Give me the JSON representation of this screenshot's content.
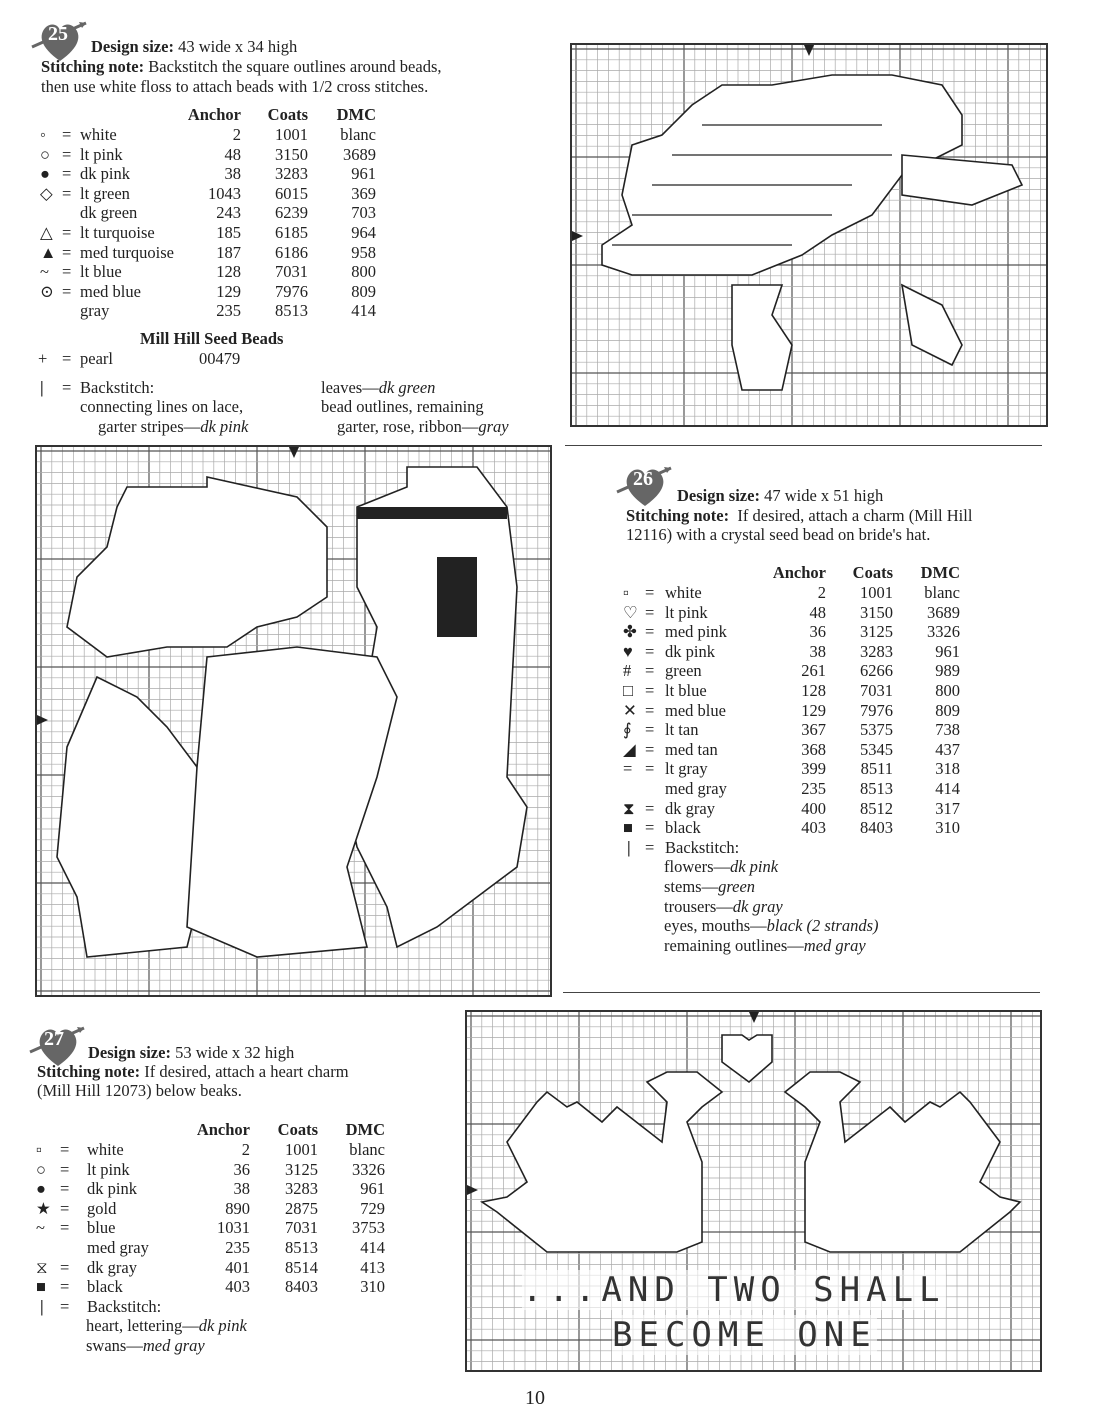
{
  "page_number": "10",
  "patterns": [
    {
      "number": "25",
      "design_size_label": "Design size:",
      "design_size": "43 wide x 34 high",
      "note_label": "Stitching note:",
      "note_line1": "Backstitch the square outlines around beads,",
      "note_line2": "then use white floss to attach beads with 1/2 cross stitches.",
      "columns": [
        "Anchor",
        "Coats",
        "DMC"
      ],
      "rows": [
        {
          "symbol": "◦",
          "icon": "small-square-icon",
          "eq": "=",
          "name": "white",
          "anchor": "2",
          "coats": "1001",
          "dmc": "blanc"
        },
        {
          "symbol": "○",
          "icon": "open-circle-icon",
          "eq": "=",
          "name": "lt pink",
          "anchor": "48",
          "coats": "3150",
          "dmc": "3689"
        },
        {
          "symbol": "●",
          "icon": "filled-circle-icon",
          "eq": "=",
          "name": "dk pink",
          "anchor": "38",
          "coats": "3283",
          "dmc": "961"
        },
        {
          "symbol": "◇",
          "icon": "open-diamond-icon",
          "eq": "=",
          "name": "lt green",
          "anchor": "1043",
          "coats": "6015",
          "dmc": "369"
        },
        {
          "symbol": "",
          "icon": "",
          "eq": "",
          "name": "dk green",
          "anchor": "243",
          "coats": "6239",
          "dmc": "703"
        },
        {
          "symbol": "△",
          "icon": "open-triangle-icon",
          "eq": "=",
          "name": "lt turquoise",
          "anchor": "185",
          "coats": "6185",
          "dmc": "964"
        },
        {
          "symbol": "▲",
          "icon": "filled-triangle-icon",
          "eq": "=",
          "name": "med turquoise",
          "anchor": "187",
          "coats": "6186",
          "dmc": "958"
        },
        {
          "symbol": "~",
          "icon": "tilde-icon",
          "eq": "=",
          "name": "lt blue",
          "anchor": "128",
          "coats": "7031",
          "dmc": "800"
        },
        {
          "symbol": "⊙",
          "icon": "dotted-circle-icon",
          "eq": "=",
          "name": "med blue",
          "anchor": "129",
          "coats": "7976",
          "dmc": "809"
        },
        {
          "symbol": "",
          "icon": "",
          "eq": "",
          "name": "gray",
          "anchor": "235",
          "coats": "8513",
          "dmc": "414"
        }
      ],
      "beads_heading": "Mill Hill Seed Beads",
      "bead": {
        "symbol": "+",
        "eq": "=",
        "name": "pearl",
        "code": "00479"
      },
      "backstitch": {
        "symbol": "|",
        "eq": "=",
        "label": "Backstitch:",
        "left_line1": "connecting lines on lace,",
        "left_line2": "garter stripes—",
        "left_color": "dk pink",
        "right_line1": "leaves—",
        "right_color1": "dk green",
        "right_line2": "bead outlines, remaining",
        "right_line3": "garter, rose, ribbon—",
        "right_color3": "gray"
      }
    },
    {
      "number": "26",
      "design_size_label": "Design size:",
      "design_size": "47 wide x 51 high",
      "note_label": "Stitching note:",
      "note_line1": "If desired, attach a charm (Mill Hill",
      "note_line2": "12116) with a crystal seed bead on bride's hat.",
      "columns": [
        "Anchor",
        "Coats",
        "DMC"
      ],
      "rows": [
        {
          "symbol": "▫",
          "icon": "small-square-icon",
          "eq": "=",
          "name": "white",
          "anchor": "2",
          "coats": "1001",
          "dmc": "blanc"
        },
        {
          "symbol": "♡",
          "icon": "open-heart-icon",
          "eq": "=",
          "name": "lt pink",
          "anchor": "48",
          "coats": "3150",
          "dmc": "3689"
        },
        {
          "symbol": "✤",
          "icon": "flower-icon",
          "eq": "=",
          "name": "med pink",
          "anchor": "36",
          "coats": "3125",
          "dmc": "3326"
        },
        {
          "symbol": "♥",
          "icon": "filled-heart-icon",
          "eq": "=",
          "name": "dk pink",
          "anchor": "38",
          "coats": "3283",
          "dmc": "961"
        },
        {
          "symbol": "#",
          "icon": "hash-icon",
          "eq": "=",
          "name": "green",
          "anchor": "261",
          "coats": "6266",
          "dmc": "989"
        },
        {
          "symbol": "□",
          "icon": "open-square-icon",
          "eq": "=",
          "name": "lt blue",
          "anchor": "128",
          "coats": "7031",
          "dmc": "800"
        },
        {
          "symbol": "✕",
          "icon": "x-cross-icon",
          "eq": "=",
          "name": "med blue",
          "anchor": "129",
          "coats": "7976",
          "dmc": "809"
        },
        {
          "symbol": "∮",
          "icon": "squiggle-icon",
          "eq": "=",
          "name": "lt tan",
          "anchor": "367",
          "coats": "5375",
          "dmc": "738"
        },
        {
          "symbol": "◢",
          "icon": "filled-wedge-icon",
          "eq": "=",
          "name": "med tan",
          "anchor": "368",
          "coats": "5345",
          "dmc": "437"
        },
        {
          "symbol": "=",
          "icon": "double-line-icon",
          "eq": "=",
          "name": "lt gray",
          "anchor": "399",
          "coats": "8511",
          "dmc": "318"
        },
        {
          "symbol": "",
          "icon": "",
          "eq": "",
          "name": "med gray",
          "anchor": "235",
          "coats": "8513",
          "dmc": "414"
        },
        {
          "symbol": "⧗",
          "icon": "hourglass-icon",
          "eq": "=",
          "name": "dk gray",
          "anchor": "400",
          "coats": "8512",
          "dmc": "317"
        },
        {
          "symbol": "■",
          "icon": "filled-square-icon",
          "eq": "=",
          "name": "black",
          "anchor": "403",
          "coats": "8403",
          "dmc": "310"
        }
      ],
      "backstitch": {
        "symbol": "|",
        "eq": "=",
        "label": "Backstitch:",
        "lines": [
          {
            "text": "flowers—",
            "color": "dk pink"
          },
          {
            "text": "stems—",
            "color": "green"
          },
          {
            "text": "trousers—",
            "color": "dk gray"
          },
          {
            "text": "eyes, mouths—",
            "color": "black (2 strands)"
          },
          {
            "text": "remaining outlines—",
            "color": "med gray"
          }
        ]
      }
    },
    {
      "number": "27",
      "design_size_label": "Design size:",
      "design_size": "53 wide x 32 high",
      "note_label": "Stitching note:",
      "note_line1": "If desired, attach a heart charm",
      "note_line2": "(Mill Hill 12073) below beaks.",
      "columns": [
        "Anchor",
        "Coats",
        "DMC"
      ],
      "rows": [
        {
          "symbol": "▫",
          "icon": "small-square-icon",
          "eq": "=",
          "name": "white",
          "anchor": "2",
          "coats": "1001",
          "dmc": "blanc"
        },
        {
          "symbol": "○",
          "icon": "open-circle-icon",
          "eq": "=",
          "name": "lt pink",
          "anchor": "36",
          "coats": "3125",
          "dmc": "3326"
        },
        {
          "symbol": "●",
          "icon": "filled-circle-icon",
          "eq": "=",
          "name": "dk pink",
          "anchor": "38",
          "coats": "3283",
          "dmc": "961"
        },
        {
          "symbol": "★",
          "icon": "star-icon",
          "eq": "=",
          "name": "gold",
          "anchor": "890",
          "coats": "2875",
          "dmc": "729"
        },
        {
          "symbol": "~",
          "icon": "tilde-icon",
          "eq": "=",
          "name": "blue",
          "anchor": "1031",
          "coats": "7031",
          "dmc": "3753"
        },
        {
          "symbol": "",
          "icon": "",
          "eq": "",
          "name": "med gray",
          "anchor": "235",
          "coats": "8513",
          "dmc": "414"
        },
        {
          "symbol": "⧖",
          "icon": "hourglass-icon",
          "eq": "=",
          "name": "dk gray",
          "anchor": "401",
          "coats": "8514",
          "dmc": "413"
        },
        {
          "symbol": "■",
          "icon": "filled-square-icon",
          "eq": "=",
          "name": "black",
          "anchor": "403",
          "coats": "8403",
          "dmc": "310"
        }
      ],
      "backstitch": {
        "symbol": "|",
        "eq": "=",
        "label": "Backstitch:",
        "lines": [
          {
            "text": "heart, lettering—",
            "color": "dk pink"
          },
          {
            "text": "swans—",
            "color": "med gray"
          }
        ]
      },
      "chart_lettering_line1": "...AND TWO SHALL",
      "chart_lettering_line2": "BECOME ONE"
    }
  ]
}
